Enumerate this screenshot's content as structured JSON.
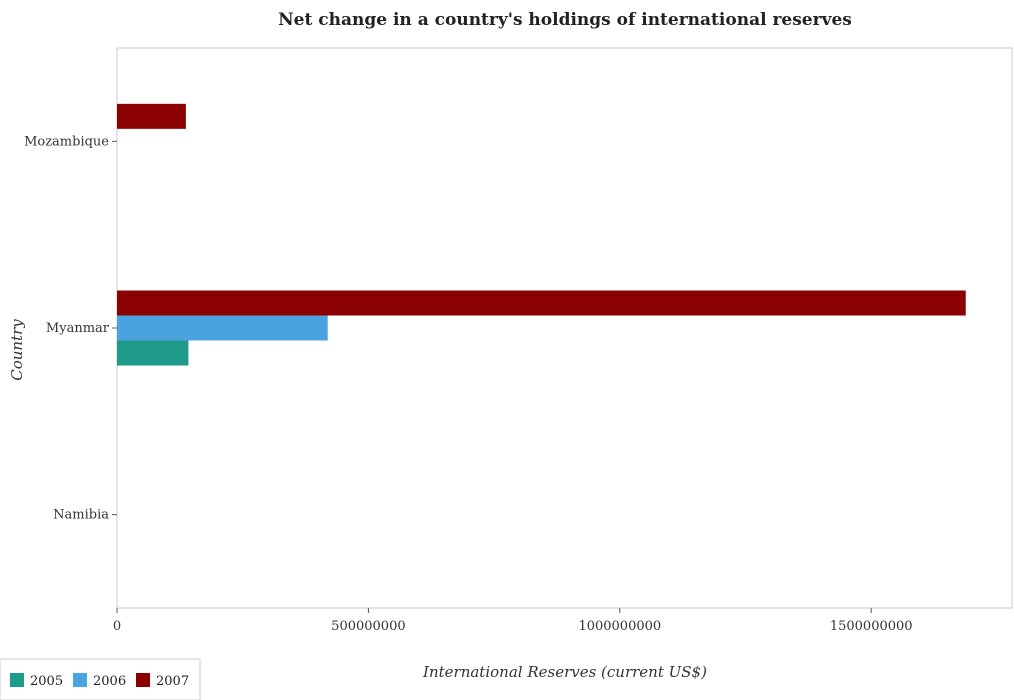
{
  "chart_data": {
    "type": "bar",
    "orientation": "horizontal",
    "title": "Net change in a country's holdings of international reserves",
    "xlabel": "International Reserves (current US$)",
    "ylabel": "Country",
    "categories": [
      "Mozambique",
      "Myanmar",
      "Namibia"
    ],
    "xlim": [
      0,
      1780000000
    ],
    "xticks": [
      0,
      500000000,
      1000000000,
      1500000000
    ],
    "xtick_labels": [
      "0",
      "500000000",
      "1000000000",
      "1500000000"
    ],
    "series": [
      {
        "name": "2005",
        "color": "#1f9b8b",
        "values": [
          0,
          142000000,
          0
        ]
      },
      {
        "name": "2006",
        "color": "#4aa3df",
        "values": [
          0,
          419000000,
          0
        ]
      },
      {
        "name": "2007",
        "color": "#8b0000",
        "values": [
          137000000,
          1688000000,
          0
        ]
      }
    ],
    "legend_position": "bottom-left",
    "grid": false
  }
}
